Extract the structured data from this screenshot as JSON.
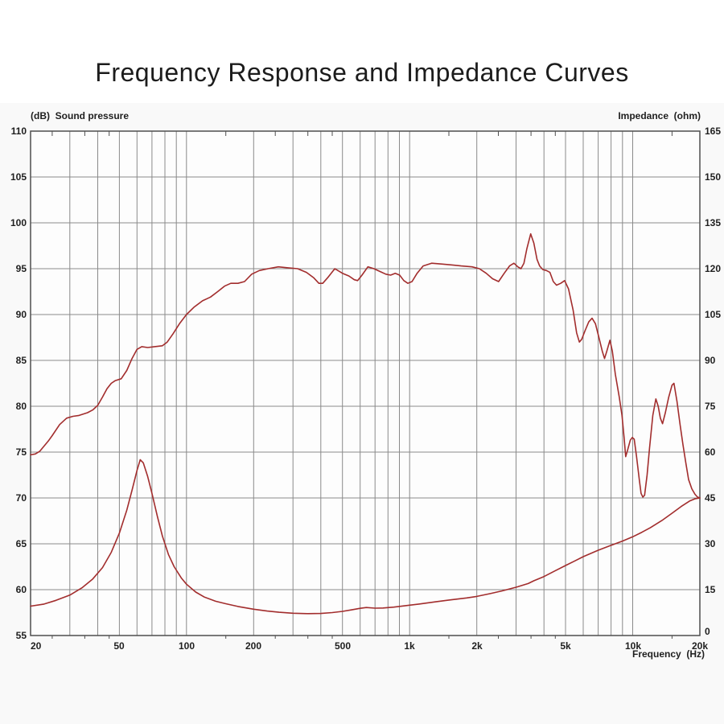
{
  "page": {
    "title": "Frequency Response and Impedance Curves"
  },
  "chart": {
    "left_axis": {
      "title": "(dB)  Sound pressure",
      "tick_labels": [
        "110",
        "105",
        "100",
        "95",
        "90",
        "85",
        "80",
        "75",
        "70",
        "65",
        "60",
        "55"
      ]
    },
    "right_axis": {
      "title": "Impedance  (ohm)",
      "tick_labels": [
        "165",
        "150",
        "135",
        "120",
        "105",
        "90",
        "75",
        "60",
        "45",
        "30",
        "15",
        "0"
      ]
    },
    "x_axis": {
      "title": "Frequency  (Hz)",
      "tick_labels": [
        "20",
        "50",
        "100",
        "200",
        "500",
        "1k",
        "2k",
        "5k",
        "10k",
        "20k"
      ],
      "tick_values": [
        20,
        50,
        100,
        200,
        500,
        1000,
        2000,
        5000,
        10000,
        20000
      ]
    },
    "colors": {
      "curve": "#a22d2d",
      "grid": "#8a8a8a",
      "frame": "#4f4f4f",
      "text": "#1f1f1f",
      "plot_bg": "#fdfdfd"
    }
  },
  "chart_data": {
    "type": "line",
    "x_scale": "log",
    "x_range_hz": [
      20,
      20000
    ],
    "left_y": {
      "label": "Sound pressure (dB)",
      "range": [
        55,
        110
      ],
      "gridline_step": 5
    },
    "right_y": {
      "label": "Impedance (ohm)",
      "range": [
        0,
        165
      ],
      "gridline_step": 15
    },
    "grid": true,
    "legend": "none",
    "grid_freqs_hz": [
      30,
      40,
      50,
      60,
      70,
      80,
      90,
      100,
      200,
      300,
      400,
      500,
      600,
      700,
      800,
      900,
      1000,
      2000,
      3000,
      4000,
      5000,
      6000,
      7000,
      8000,
      9000,
      10000,
      20000
    ],
    "minor_tick_freqs_hz": [
      25,
      35,
      45,
      150,
      250,
      350,
      450,
      1500,
      2500,
      3500,
      4500,
      15000
    ],
    "series": [
      {
        "name": "sound_pressure_db",
        "axis": "left",
        "color": "#a22d2d",
        "points": [
          [
            20,
            74.7
          ],
          [
            21,
            74.8
          ],
          [
            22,
            75.1
          ],
          [
            24,
            76.2
          ],
          [
            25,
            76.8
          ],
          [
            27,
            78.0
          ],
          [
            29,
            78.7
          ],
          [
            31,
            78.9
          ],
          [
            33,
            79.0
          ],
          [
            36,
            79.3
          ],
          [
            38,
            79.6
          ],
          [
            40,
            80.1
          ],
          [
            42,
            81.0
          ],
          [
            44,
            81.9
          ],
          [
            46,
            82.5
          ],
          [
            48,
            82.8
          ],
          [
            51,
            83.0
          ],
          [
            54,
            83.9
          ],
          [
            57,
            85.2
          ],
          [
            60,
            86.2
          ],
          [
            63,
            86.5
          ],
          [
            67,
            86.4
          ],
          [
            72,
            86.5
          ],
          [
            78,
            86.6
          ],
          [
            82,
            87.0
          ],
          [
            87,
            87.9
          ],
          [
            93,
            89.0
          ],
          [
            100,
            90.0
          ],
          [
            108,
            90.8
          ],
          [
            118,
            91.5
          ],
          [
            128,
            91.9
          ],
          [
            138,
            92.5
          ],
          [
            148,
            93.1
          ],
          [
            158,
            93.4
          ],
          [
            170,
            93.4
          ],
          [
            182,
            93.6
          ],
          [
            196,
            94.4
          ],
          [
            212,
            94.8
          ],
          [
            232,
            95.0
          ],
          [
            258,
            95.2
          ],
          [
            285,
            95.1
          ],
          [
            315,
            95.0
          ],
          [
            345,
            94.6
          ],
          [
            372,
            94.0
          ],
          [
            392,
            93.4
          ],
          [
            408,
            93.4
          ],
          [
            432,
            94.1
          ],
          [
            462,
            95.0
          ],
          [
            500,
            94.5
          ],
          [
            535,
            94.2
          ],
          [
            565,
            93.8
          ],
          [
            585,
            93.7
          ],
          [
            612,
            94.3
          ],
          [
            650,
            95.2
          ],
          [
            692,
            95.0
          ],
          [
            735,
            94.7
          ],
          [
            782,
            94.4
          ],
          [
            822,
            94.3
          ],
          [
            862,
            94.5
          ],
          [
            902,
            94.3
          ],
          [
            942,
            93.7
          ],
          [
            982,
            93.4
          ],
          [
            1025,
            93.6
          ],
          [
            1080,
            94.5
          ],
          [
            1150,
            95.3
          ],
          [
            1255,
            95.6
          ],
          [
            1405,
            95.5
          ],
          [
            1555,
            95.4
          ],
          [
            1705,
            95.3
          ],
          [
            1905,
            95.2
          ],
          [
            2055,
            95.0
          ],
          [
            2205,
            94.5
          ],
          [
            2355,
            93.9
          ],
          [
            2505,
            93.6
          ],
          [
            2655,
            94.5
          ],
          [
            2805,
            95.3
          ],
          [
            2935,
            95.6
          ],
          [
            3055,
            95.2
          ],
          [
            3155,
            95.0
          ],
          [
            3255,
            95.6
          ],
          [
            3355,
            97.2
          ],
          [
            3490,
            98.8
          ],
          [
            3605,
            97.8
          ],
          [
            3725,
            96.0
          ],
          [
            3825,
            95.3
          ],
          [
            3955,
            94.9
          ],
          [
            4105,
            94.8
          ],
          [
            4255,
            94.6
          ],
          [
            4405,
            93.6
          ],
          [
            4555,
            93.2
          ],
          [
            4755,
            93.4
          ],
          [
            4955,
            93.7
          ],
          [
            5155,
            92.8
          ],
          [
            5405,
            90.5
          ],
          [
            5605,
            88.0
          ],
          [
            5765,
            87.0
          ],
          [
            5905,
            87.3
          ],
          [
            6105,
            88.2
          ],
          [
            6355,
            89.2
          ],
          [
            6575,
            89.6
          ],
          [
            6805,
            89.0
          ],
          [
            7055,
            87.5
          ],
          [
            7305,
            86.0
          ],
          [
            7475,
            85.2
          ],
          [
            7655,
            86.0
          ],
          [
            7905,
            87.2
          ],
          [
            8105,
            86.0
          ],
          [
            8355,
            83.5
          ],
          [
            8705,
            81.0
          ],
          [
            8955,
            79.0
          ],
          [
            9155,
            76.5
          ],
          [
            9305,
            74.5
          ],
          [
            9505,
            75.3
          ],
          [
            9755,
            76.3
          ],
          [
            9955,
            76.6
          ],
          [
            10155,
            76.4
          ],
          [
            10405,
            74.5
          ],
          [
            10705,
            72.0
          ],
          [
            10905,
            70.5
          ],
          [
            11105,
            70.1
          ],
          [
            11305,
            70.3
          ],
          [
            11605,
            72.5
          ],
          [
            11905,
            75.5
          ],
          [
            12305,
            79.0
          ],
          [
            12705,
            80.8
          ],
          [
            13005,
            80.0
          ],
          [
            13305,
            78.7
          ],
          [
            13605,
            78.1
          ],
          [
            14005,
            79.3
          ],
          [
            14505,
            81.0
          ],
          [
            15005,
            82.3
          ],
          [
            15305,
            82.5
          ],
          [
            15805,
            80.5
          ],
          [
            16305,
            78.0
          ],
          [
            16805,
            75.8
          ],
          [
            17305,
            73.8
          ],
          [
            17805,
            72.0
          ],
          [
            18405,
            71.0
          ],
          [
            19005,
            70.4
          ],
          [
            19505,
            70.1
          ],
          [
            20000,
            70.0
          ]
        ]
      },
      {
        "name": "impedance_ohm",
        "axis": "right",
        "color": "#a22d2d",
        "points": [
          [
            20,
            9.6
          ],
          [
            23,
            10.3
          ],
          [
            26,
            11.5
          ],
          [
            30,
            13.2
          ],
          [
            34,
            15.6
          ],
          [
            38,
            18.5
          ],
          [
            42,
            22.2
          ],
          [
            46,
            27.2
          ],
          [
            50,
            33.5
          ],
          [
            54,
            41.0
          ],
          [
            57,
            47.5
          ],
          [
            60,
            54.0
          ],
          [
            62,
            57.5
          ],
          [
            64,
            56.5
          ],
          [
            67,
            52.0
          ],
          [
            70,
            46.5
          ],
          [
            74,
            39.0
          ],
          [
            78,
            32.5
          ],
          [
            83,
            26.5
          ],
          [
            88,
            22.5
          ],
          [
            95,
            18.7
          ],
          [
            100,
            16.8
          ],
          [
            110,
            14.2
          ],
          [
            120,
            12.6
          ],
          [
            135,
            11.2
          ],
          [
            150,
            10.4
          ],
          [
            170,
            9.5
          ],
          [
            200,
            8.6
          ],
          [
            230,
            8.0
          ],
          [
            260,
            7.6
          ],
          [
            300,
            7.3
          ],
          [
            350,
            7.15
          ],
          [
            400,
            7.2
          ],
          [
            450,
            7.5
          ],
          [
            500,
            7.9
          ],
          [
            550,
            8.4
          ],
          [
            600,
            8.9
          ],
          [
            640,
            9.15
          ],
          [
            700,
            8.95
          ],
          [
            760,
            9.0
          ],
          [
            850,
            9.3
          ],
          [
            950,
            9.7
          ],
          [
            1100,
            10.3
          ],
          [
            1300,
            11.0
          ],
          [
            1500,
            11.6
          ],
          [
            1800,
            12.3
          ],
          [
            2000,
            12.8
          ],
          [
            2300,
            13.7
          ],
          [
            2600,
            14.6
          ],
          [
            3000,
            15.8
          ],
          [
            3400,
            17.0
          ],
          [
            3600,
            17.9
          ],
          [
            4000,
            19.3
          ],
          [
            4500,
            21.2
          ],
          [
            5000,
            22.9
          ],
          [
            5500,
            24.4
          ],
          [
            6000,
            25.8
          ],
          [
            7000,
            27.9
          ],
          [
            8000,
            29.5
          ],
          [
            9000,
            30.9
          ],
          [
            10000,
            32.3
          ],
          [
            11000,
            33.8
          ],
          [
            12000,
            35.3
          ],
          [
            13500,
            37.6
          ],
          [
            15000,
            40.0
          ],
          [
            16500,
            42.2
          ],
          [
            18000,
            44.0
          ],
          [
            19000,
            44.7
          ],
          [
            20000,
            45.0
          ]
        ]
      }
    ]
  }
}
